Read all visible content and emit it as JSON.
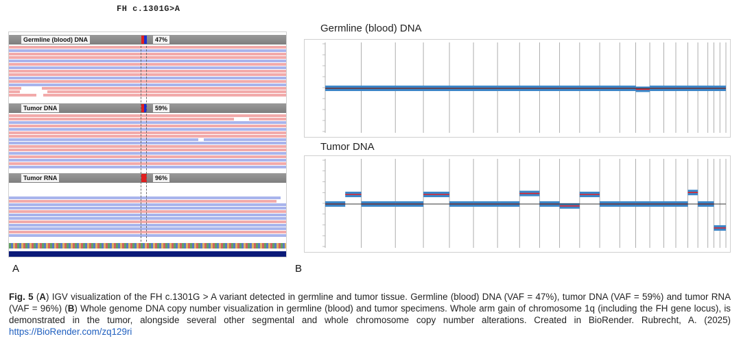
{
  "panel_a": {
    "title": "FH c.1301G>A",
    "letter": "A",
    "tracks": [
      {
        "name": "Germline (blood) DNA",
        "vaf": "47%"
      },
      {
        "name": "Tumor DNA",
        "vaf": "59%"
      },
      {
        "name": "Tumor RNA",
        "vaf": "96%"
      }
    ]
  },
  "panel_b": {
    "letter": "B",
    "plots": [
      {
        "title": "Germline (blood) DNA"
      },
      {
        "title": "Tumor DNA"
      }
    ]
  },
  "caption": {
    "fig_label": "Fig. 5",
    "part1": " (",
    "a_label": "A",
    "part2": ") IGV visualization of the FH c.1301G > A variant detected in germline and tumor tissue. Germline (blood) DNA (VAF = 47%), tumor DNA (VAF = 59%) and tumor RNA (VAF = 96%) (",
    "b_label": "B",
    "part3": ") Whole genome DNA copy number visualization in germline (blood) and tumor specimens. Whole arm gain of chromosome 1q (including the FH gene locus), is demonstrated in the tumor, alongside several other segmental and whole chromosome copy number alterations. Created in BioRender. Rubrecht, A. (2025) ",
    "link": "https://BioRender.com/zq129ri"
  },
  "colors": {
    "ref_read": "#f2aaaa",
    "alt_read": "#a8b4ec",
    "cnv_points": "#3b86c8",
    "cnv_segment": "#e0222a",
    "link": "#1f5fbf"
  }
}
